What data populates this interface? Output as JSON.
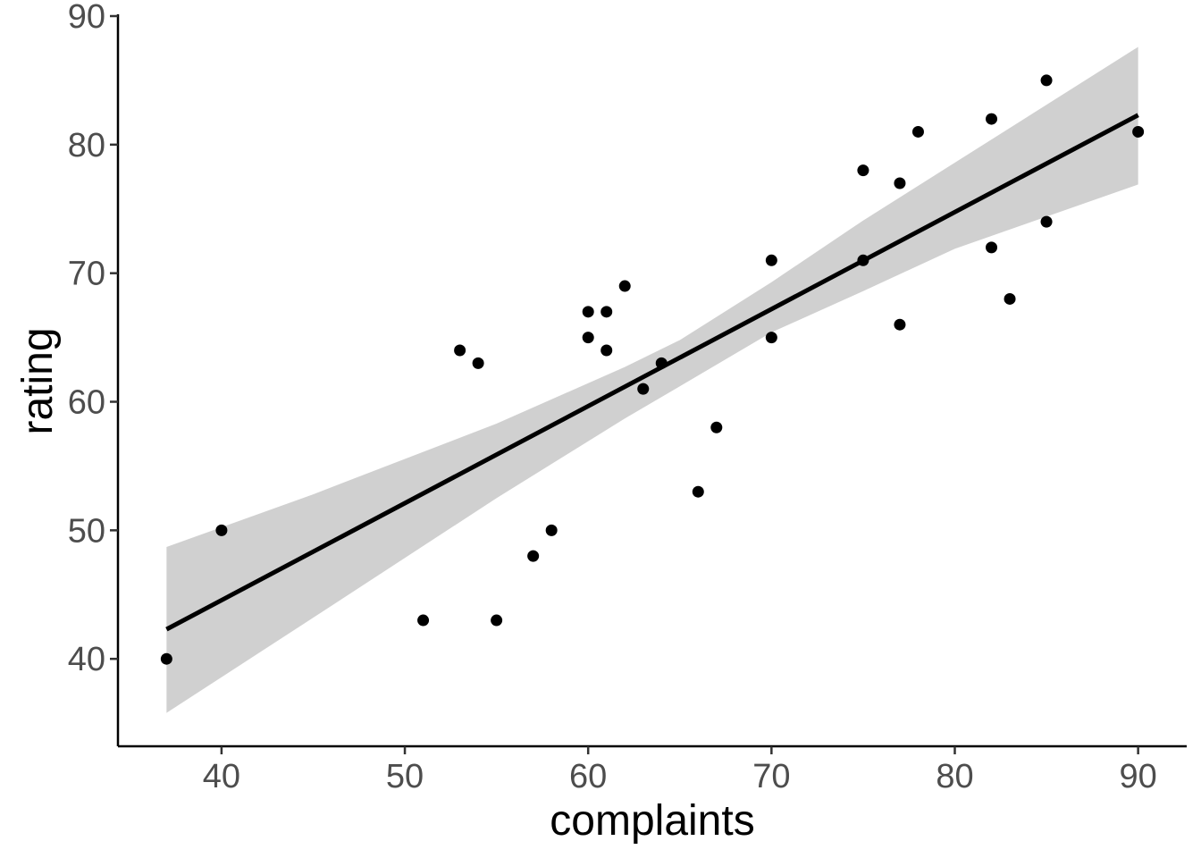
{
  "chart_data": {
    "type": "scatter",
    "title": "",
    "xlabel": "complaints",
    "ylabel": "rating",
    "xlim": [
      34.35,
      92.65
    ],
    "ylim": [
      33.2,
      90.0
    ],
    "x_ticks": [
      40,
      50,
      60,
      70,
      80,
      90
    ],
    "y_ticks": [
      40,
      50,
      60,
      70,
      80,
      90
    ],
    "grid": false,
    "legend": "none",
    "point_color": "#000000",
    "line_color": "#000000",
    "band_color": "#d0d0d0",
    "points": [
      {
        "x": 37,
        "y": 40
      },
      {
        "x": 40,
        "y": 50
      },
      {
        "x": 51,
        "y": 43
      },
      {
        "x": 53,
        "y": 64
      },
      {
        "x": 54,
        "y": 63
      },
      {
        "x": 55,
        "y": 43
      },
      {
        "x": 57,
        "y": 48
      },
      {
        "x": 58,
        "y": 50
      },
      {
        "x": 60,
        "y": 67
      },
      {
        "x": 60,
        "y": 65
      },
      {
        "x": 61,
        "y": 67
      },
      {
        "x": 61,
        "y": 64
      },
      {
        "x": 62,
        "y": 69
      },
      {
        "x": 63,
        "y": 61
      },
      {
        "x": 64,
        "y": 63
      },
      {
        "x": 66,
        "y": 53
      },
      {
        "x": 67,
        "y": 58
      },
      {
        "x": 70,
        "y": 71
      },
      {
        "x": 70,
        "y": 65
      },
      {
        "x": 75,
        "y": 78
      },
      {
        "x": 75,
        "y": 71
      },
      {
        "x": 77,
        "y": 77
      },
      {
        "x": 77,
        "y": 66
      },
      {
        "x": 78,
        "y": 81
      },
      {
        "x": 82,
        "y": 82
      },
      {
        "x": 82,
        "y": 72
      },
      {
        "x": 83,
        "y": 68
      },
      {
        "x": 85,
        "y": 85
      },
      {
        "x": 85,
        "y": 74
      },
      {
        "x": 90,
        "y": 81
      }
    ],
    "fit_line": {
      "x": [
        37,
        90
      ],
      "y": [
        42.3,
        82.3
      ]
    },
    "confidence_band": {
      "x": [
        37,
        45,
        55,
        62,
        65,
        70,
        75,
        80,
        85,
        90
      ],
      "upper": [
        48.7,
        52.8,
        58.3,
        62.7,
        64.8,
        69.3,
        74.1,
        78.6,
        83.1,
        87.6
      ],
      "lower": [
        35.8,
        43.2,
        52.5,
        58.7,
        61.2,
        65.4,
        68.6,
        71.9,
        74.4,
        76.9
      ]
    }
  }
}
